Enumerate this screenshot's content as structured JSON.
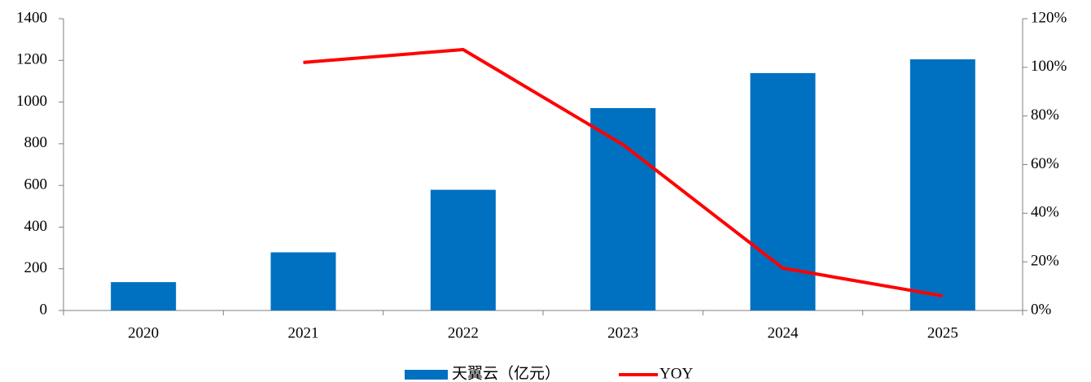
{
  "chart_data": {
    "type": "bar",
    "categories": [
      "2020",
      "2021",
      "2022",
      "2023",
      "2024",
      "2025"
    ],
    "series": [
      {
        "name": "天翼云（亿元）",
        "type": "bar",
        "color": "#0070c0",
        "values": [
          136,
          279,
          579,
          971,
          1139,
          1205
        ]
      },
      {
        "name": "YOY",
        "type": "line",
        "axis": "y2",
        "color": "#ff0000",
        "values": [
          null,
          102,
          107.3,
          68.2,
          17.4,
          6.0
        ]
      }
    ],
    "ylim": [
      0,
      1400
    ],
    "yticks": [
      0,
      200,
      400,
      600,
      800,
      1000,
      1200,
      1400
    ],
    "y2lim": [
      0,
      120
    ],
    "y2ticks": [
      {
        "value": 0,
        "label": "0%"
      },
      {
        "value": 20,
        "label": "20%"
      },
      {
        "value": 40,
        "label": "40%"
      },
      {
        "value": 60,
        "label": "60%"
      },
      {
        "value": 80,
        "label": "80%"
      },
      {
        "value": 100,
        "label": "100%"
      },
      {
        "value": 120,
        "label": "120%"
      }
    ],
    "legend": "bottom"
  }
}
